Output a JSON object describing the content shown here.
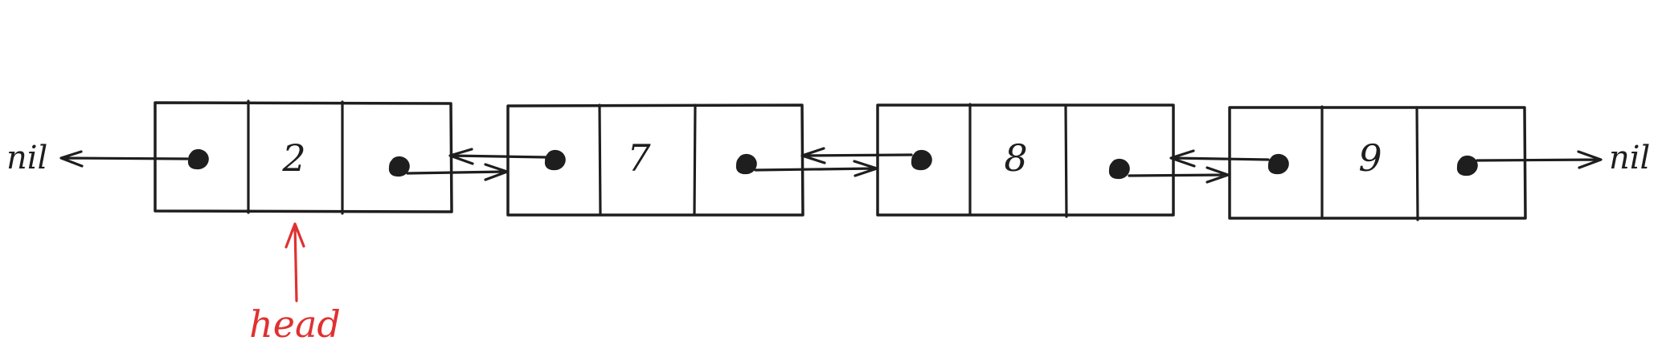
{
  "colors": {
    "ink": "#1e1e1e",
    "accent": "#e03131",
    "background": "#ffffff"
  },
  "nodes": [
    {
      "value": "2"
    },
    {
      "value": "7"
    },
    {
      "value": "8"
    },
    {
      "value": "9"
    }
  ],
  "left_terminal": "nil",
  "right_terminal": "nil",
  "head_label": "head"
}
